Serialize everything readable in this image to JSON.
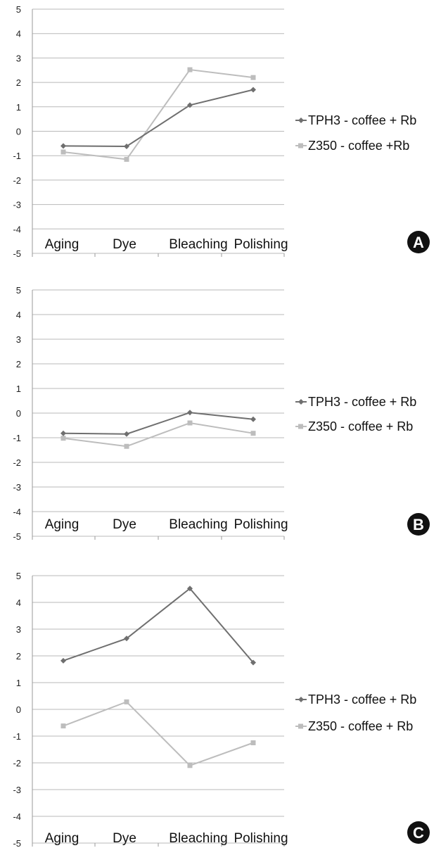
{
  "chart_data": [
    {
      "type": "line",
      "panel_label": "A",
      "categories": [
        "Aging",
        "Dye",
        "Bleaching",
        "Polishing"
      ],
      "ylim": [
        -5,
        5
      ],
      "yticks": [
        -5,
        -4,
        -3,
        -2,
        -1,
        0,
        1,
        2,
        3,
        4,
        5
      ],
      "grid": true,
      "legend_position": "right",
      "series": [
        {
          "name": "TPH3 - coffee + Rb",
          "values": [
            -0.6,
            -0.62,
            1.07,
            1.7
          ],
          "color": "#6f6f6f",
          "marker": "diamond"
        },
        {
          "name": "Z350 - coffee +Rb",
          "values": [
            -0.85,
            -1.15,
            2.52,
            2.2
          ],
          "color": "#bdbdbd",
          "marker": "square"
        }
      ]
    },
    {
      "type": "line",
      "panel_label": "B",
      "categories": [
        "Aging",
        "Dye",
        "Bleaching",
        "Polishing"
      ],
      "ylim": [
        -5,
        5
      ],
      "yticks": [
        -5,
        -4,
        -3,
        -2,
        -1,
        0,
        1,
        2,
        3,
        4,
        5
      ],
      "grid": true,
      "legend_position": "right",
      "series": [
        {
          "name": "TPH3 - coffee + Rb",
          "values": [
            -0.82,
            -0.85,
            0.02,
            -0.25
          ],
          "color": "#6f6f6f",
          "marker": "diamond"
        },
        {
          "name": "Z350 - coffee + Rb",
          "values": [
            -1.02,
            -1.35,
            -0.4,
            -0.82
          ],
          "color": "#bdbdbd",
          "marker": "square"
        }
      ]
    },
    {
      "type": "line",
      "panel_label": "C",
      "categories": [
        "Aging",
        "Dye",
        "Bleaching",
        "Polishing"
      ],
      "ylim": [
        -5,
        5
      ],
      "yticks": [
        -5,
        -4,
        -3,
        -2,
        -1,
        0,
        1,
        2,
        3,
        4,
        5
      ],
      "grid": true,
      "legend_position": "right",
      "series": [
        {
          "name": "TPH3 - coffee + Rb",
          "values": [
            1.82,
            2.65,
            4.52,
            1.75
          ],
          "color": "#6f6f6f",
          "marker": "diamond"
        },
        {
          "name": "Z350 - coffee + Rb",
          "values": [
            -0.62,
            0.28,
            -2.1,
            -1.25
          ],
          "color": "#bdbdbd",
          "marker": "square"
        }
      ]
    }
  ]
}
